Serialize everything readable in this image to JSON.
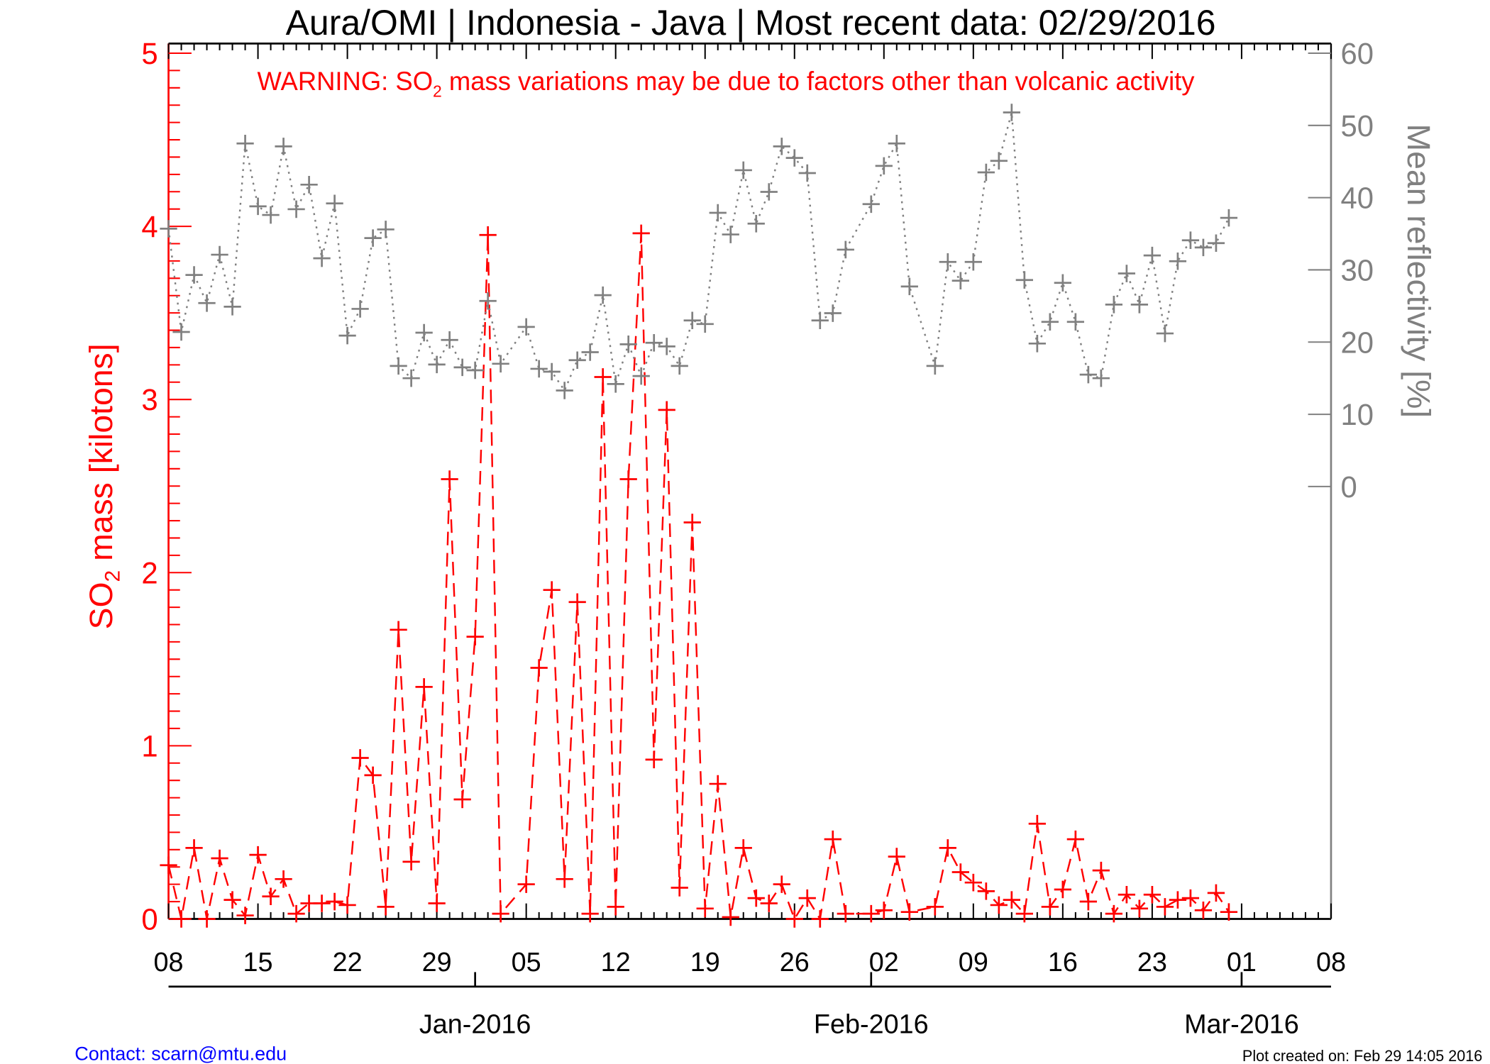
{
  "chart_data": {
    "type": "line",
    "title": "Aura/OMI | Indonesia - Java | Most recent data: 02/29/2016",
    "warning": {
      "pre": "WARNING: SO",
      "sub": "2",
      "post": " mass variations may be due to factors other than volcanic activity"
    },
    "ylabel_left": {
      "pre": "SO",
      "sub": "2",
      "post": " mass [kilotons]"
    },
    "ylabel_right": "Mean reflectivity [%]",
    "x_range": [
      "2015-12-08",
      "2016-03-08"
    ],
    "x_ticks": [
      "08",
      "15",
      "22",
      "29",
      "05",
      "12",
      "19",
      "26",
      "02",
      "09",
      "16",
      "23",
      "01",
      "08"
    ],
    "x_month_labels": [
      {
        "date": "2016-01-01",
        "label": "Jan-2016"
      },
      {
        "date": "2016-02-01",
        "label": "Feb-2016"
      },
      {
        "date": "2016-03-01",
        "label": "Mar-2016"
      }
    ],
    "ylim_left": [
      0,
      5
    ],
    "yticks_left": [
      "0",
      "1",
      "2",
      "3",
      "4",
      "5"
    ],
    "ylim_right": [
      0,
      60
    ],
    "yticks_right": [
      "0",
      "10",
      "20",
      "30",
      "40",
      "50",
      "60"
    ],
    "colors": {
      "so2": "#ff0000",
      "reflectivity": "#808080",
      "axis": "#000000",
      "contact": "#0000ff"
    },
    "dates": [
      "2015-12-08",
      "2015-12-09",
      "2015-12-10",
      "2015-12-11",
      "2015-12-12",
      "2015-12-13",
      "2015-12-14",
      "2015-12-15",
      "2015-12-16",
      "2015-12-17",
      "2015-12-18",
      "2015-12-19",
      "2015-12-20",
      "2015-12-21",
      "2015-12-22",
      "2015-12-23",
      "2015-12-24",
      "2015-12-25",
      "2015-12-26",
      "2015-12-27",
      "2015-12-28",
      "2015-12-29",
      "2015-12-30",
      "2015-12-31",
      "2016-01-01",
      "2016-01-02",
      "2016-01-03",
      "2016-01-05",
      "2016-01-06",
      "2016-01-07",
      "2016-01-08",
      "2016-01-09",
      "2016-01-10",
      "2016-01-11",
      "2016-01-12",
      "2016-01-13",
      "2016-01-14",
      "2016-01-15",
      "2016-01-16",
      "2016-01-17",
      "2016-01-18",
      "2016-01-19",
      "2016-01-20",
      "2016-01-21",
      "2016-01-22",
      "2016-01-23",
      "2016-01-24",
      "2016-01-25",
      "2016-01-26",
      "2016-01-27",
      "2016-01-28",
      "2016-01-29",
      "2016-01-30",
      "2016-02-01",
      "2016-02-02",
      "2016-02-03",
      "2016-02-04",
      "2016-02-06",
      "2016-02-07",
      "2016-02-08",
      "2016-02-09",
      "2016-02-10",
      "2016-02-11",
      "2016-02-12",
      "2016-02-13",
      "2016-02-14",
      "2016-02-15",
      "2016-02-16",
      "2016-02-17",
      "2016-02-18",
      "2016-02-19",
      "2016-02-20",
      "2016-02-21",
      "2016-02-22",
      "2016-02-23",
      "2016-02-24",
      "2016-02-25",
      "2016-02-26",
      "2016-02-27",
      "2016-02-28",
      "2016-02-29"
    ],
    "series": [
      {
        "name": "SO2 mass [kilotons]",
        "axis": "left",
        "values": [
          0.31,
          0,
          0.41,
          0,
          0.35,
          0.11,
          0.02,
          0.37,
          0.13,
          0.23,
          0.03,
          0.09,
          0.09,
          0.1,
          0.08,
          0.93,
          0.83,
          0.07,
          1.67,
          0.33,
          1.34,
          0.09,
          2.54,
          0.69,
          1.63,
          3.95,
          0.03,
          0.2,
          1.45,
          1.9,
          0.23,
          1.83,
          0.03,
          3.13,
          0.07,
          2.54,
          3.96,
          0.92,
          2.94,
          0.18,
          2.29,
          0.06,
          0.78,
          0.01,
          0.41,
          0.12,
          0.09,
          0.2,
          0,
          0.12,
          0,
          0.46,
          0.03,
          0.03,
          0.05,
          0.36,
          0.04,
          0.07,
          0.41,
          0.27,
          0.21,
          0.16,
          0.08,
          0.11,
          0.03,
          0.55,
          0.07,
          0.17,
          0.46,
          0.1,
          0.28,
          0.03,
          0.14,
          0.06,
          0.14,
          0.07,
          0.11,
          0.12,
          0.05,
          0.15,
          0.04
        ]
      },
      {
        "name": "Mean reflectivity [%]",
        "axis": "right",
        "values": [
          35.7,
          21.4,
          29.3,
          25.4,
          32.1,
          24.9,
          47.5,
          38.8,
          37.6,
          47.1,
          38.4,
          41.8,
          31.6,
          39.2,
          20.9,
          24.6,
          34.4,
          35.6,
          16.7,
          15.0,
          21.3,
          16.9,
          20.3,
          16.5,
          16.1,
          25.7,
          17.0,
          22.1,
          16.3,
          15.9,
          13.3,
          17.5,
          18.6,
          26.5,
          14.2,
          19.7,
          15.3,
          19.9,
          19.4,
          16.7,
          23.0,
          22.5,
          37.9,
          34.9,
          43.8,
          36.4,
          40.8,
          47.1,
          45.5,
          43.4,
          23.0,
          24.0,
          32.8,
          39.1,
          44.4,
          47.5,
          27.7,
          16.7,
          31.1,
          28.5,
          31.1,
          43.5,
          45.1,
          51.8,
          28.6,
          19.8,
          22.8,
          28.2,
          22.8,
          15.5,
          15.0,
          25.2,
          29.5,
          25.2,
          32.0,
          21.2,
          31.2,
          34.1,
          33.1,
          33.7,
          37.2
        ]
      }
    ]
  },
  "footer": {
    "contact": "Contact: scarn@mtu.edu",
    "created": "Plot created on: Feb 29 14:05 2016"
  }
}
